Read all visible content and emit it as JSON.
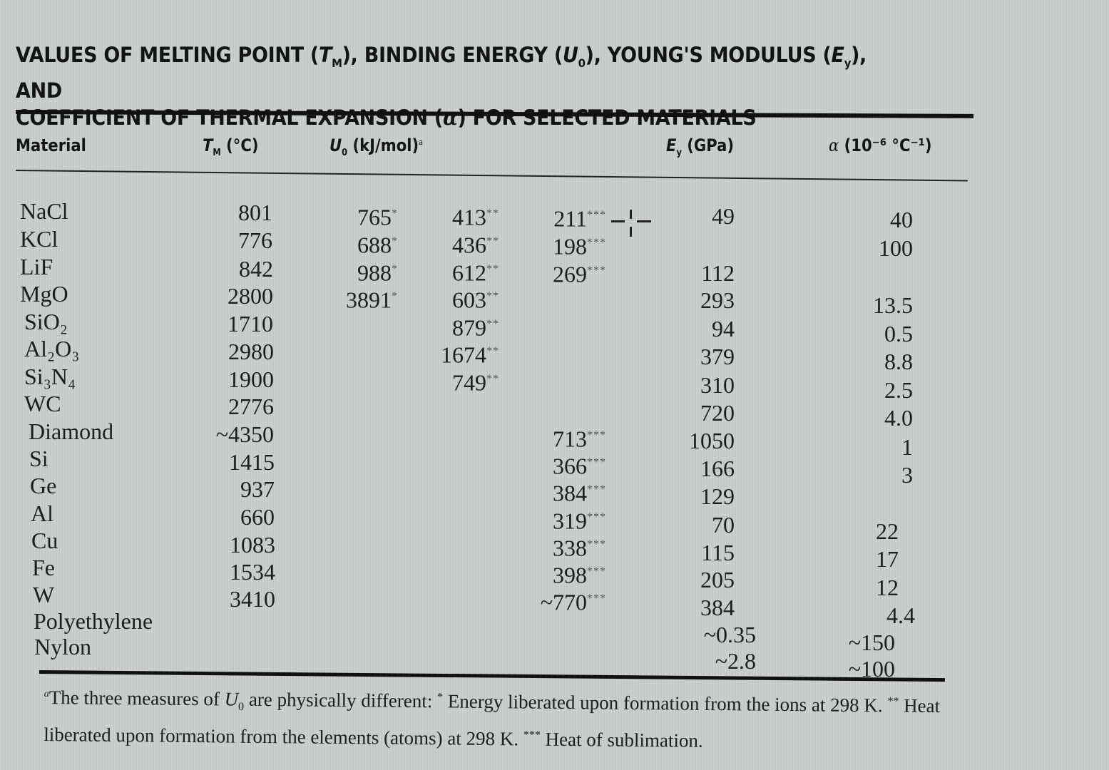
{
  "title": {
    "line1_a": "VALUES OF MELTING POINT (",
    "line1_tm": "T",
    "line1_tm_sub": "M",
    "line1_b": "), BINDING ENERGY (",
    "line1_u": "U",
    "line1_u_sub": "0",
    "line1_c": "), YOUNG'S MODULUS (",
    "line1_e": "E",
    "line1_e_sub": "y",
    "line1_d": "), AND",
    "line2_a": "COEFFICIENT OF THERMAL EXPANSION (",
    "line2_alpha": "α",
    "line2_b": ") FOR SELECTED MATERIALS"
  },
  "headers": {
    "material": "Material",
    "tm": "T",
    "tm_sub": "M",
    "tm_unit": " (°C)",
    "u0": "U",
    "u0_sub": "0",
    "u0_unit": " (kJ/mol)",
    "u0_mark": "a",
    "ey": "E",
    "ey_sub": "y",
    "ey_unit": " (GPa)",
    "alpha": "α",
    "alpha_unit": " (10⁻⁶ °C⁻¹)"
  },
  "rows": [
    {
      "material": "NaCl",
      "tm": "801",
      "u0_ion": "765",
      "u0_ion_mark": "*",
      "u0_atom": "413",
      "u0_atom_mark": "**",
      "u0_sub": "211",
      "u0_sub_mark": "***",
      "ey": "49",
      "alpha": "40"
    },
    {
      "material": "KCl",
      "tm": "776",
      "u0_ion": "688",
      "u0_ion_mark": "*",
      "u0_atom": "436",
      "u0_atom_mark": "**",
      "u0_sub": "198",
      "u0_sub_mark": "***",
      "ey": "",
      "alpha": "100"
    },
    {
      "material": "LiF",
      "tm": "842",
      "u0_ion": "988",
      "u0_ion_mark": "*",
      "u0_atom": "612",
      "u0_atom_mark": "**",
      "u0_sub": "269",
      "u0_sub_mark": "***",
      "ey": "112",
      "alpha": ""
    },
    {
      "material": "MgO",
      "tm": "2800",
      "u0_ion": "3891",
      "u0_ion_mark": "*",
      "u0_atom": "603",
      "u0_atom_mark": "**",
      "u0_sub": "",
      "u0_sub_mark": "",
      "ey": "293",
      "alpha": "13.5"
    },
    {
      "material": "SiO₂",
      "tm": "1710",
      "u0_ion": "",
      "u0_ion_mark": "",
      "u0_atom": "879",
      "u0_atom_mark": "**",
      "u0_sub": "",
      "u0_sub_mark": "",
      "ey": "94",
      "alpha": "0.5"
    },
    {
      "material": "Al₂O₃",
      "tm": "2980",
      "u0_ion": "",
      "u0_ion_mark": "",
      "u0_atom": "1674",
      "u0_atom_mark": "**",
      "u0_sub": "",
      "u0_sub_mark": "",
      "ey": "379",
      "alpha": "8.8"
    },
    {
      "material": "Si₃N₄",
      "tm": "1900",
      "u0_ion": "",
      "u0_ion_mark": "",
      "u0_atom": "749",
      "u0_atom_mark": "**",
      "u0_sub": "",
      "u0_sub_mark": "",
      "ey": "310",
      "alpha": "2.5"
    },
    {
      "material": "WC",
      "tm": "2776",
      "u0_ion": "",
      "u0_ion_mark": "",
      "u0_atom": "",
      "u0_atom_mark": "",
      "u0_sub": "",
      "u0_sub_mark": "",
      "ey": "720",
      "alpha": "4.0"
    },
    {
      "material": "Diamond",
      "tm": "~4350",
      "u0_ion": "",
      "u0_ion_mark": "",
      "u0_atom": "",
      "u0_atom_mark": "",
      "u0_sub": "713",
      "u0_sub_mark": "***",
      "ey": "1050",
      "alpha": "1"
    },
    {
      "material": "Si",
      "tm": "1415",
      "u0_ion": "",
      "u0_ion_mark": "",
      "u0_atom": "",
      "u0_atom_mark": "",
      "u0_sub": "366",
      "u0_sub_mark": "***",
      "ey": "166",
      "alpha": "3"
    },
    {
      "material": "Ge",
      "tm": "937",
      "u0_ion": "",
      "u0_ion_mark": "",
      "u0_atom": "",
      "u0_atom_mark": "",
      "u0_sub": "384",
      "u0_sub_mark": "***",
      "ey": "129",
      "alpha": ""
    },
    {
      "material": "Al",
      "tm": "660",
      "u0_ion": "",
      "u0_ion_mark": "",
      "u0_atom": "",
      "u0_atom_mark": "",
      "u0_sub": "319",
      "u0_sub_mark": "***",
      "ey": "70",
      "alpha": "22"
    },
    {
      "material": "Cu",
      "tm": "1083",
      "u0_ion": "",
      "u0_ion_mark": "",
      "u0_atom": "",
      "u0_atom_mark": "",
      "u0_sub": "338",
      "u0_sub_mark": "***",
      "ey": "115",
      "alpha": "17"
    },
    {
      "material": "Fe",
      "tm": "1534",
      "u0_ion": "",
      "u0_ion_mark": "",
      "u0_atom": "",
      "u0_atom_mark": "",
      "u0_sub": "398",
      "u0_sub_mark": "***",
      "ey": "205",
      "alpha": "12"
    },
    {
      "material": "W",
      "tm": "3410",
      "u0_ion": "",
      "u0_ion_mark": "",
      "u0_atom": "",
      "u0_atom_mark": "",
      "u0_sub": "~770",
      "u0_sub_mark": "***",
      "ey": "384",
      "alpha": "4.4"
    },
    {
      "material": "Polyethylene",
      "tm": "",
      "u0_ion": "",
      "u0_ion_mark": "",
      "u0_atom": "",
      "u0_atom_mark": "",
      "u0_sub": "",
      "u0_sub_mark": "",
      "ey": "~0.35",
      "alpha": "~150"
    },
    {
      "material": "Nylon",
      "tm": "",
      "u0_ion": "",
      "u0_ion_mark": "",
      "u0_atom": "",
      "u0_atom_mark": "",
      "u0_sub": "",
      "u0_sub_mark": "",
      "ey": "~2.8",
      "alpha": "~100"
    }
  ],
  "footnote": {
    "mark": "a",
    "text_a": "The three measures of ",
    "u": "U",
    "u_sub": "0",
    "text_b": " are physically different: ",
    "star1": "*",
    "text_c": " Energy liberated upon formation from the ions at 298 K. ",
    "star2": "**",
    "text_d": " Heat liberated upon formation from the elements (atoms) at 298 K. ",
    "star3": "***",
    "text_e": " Heat of sublimation."
  }
}
